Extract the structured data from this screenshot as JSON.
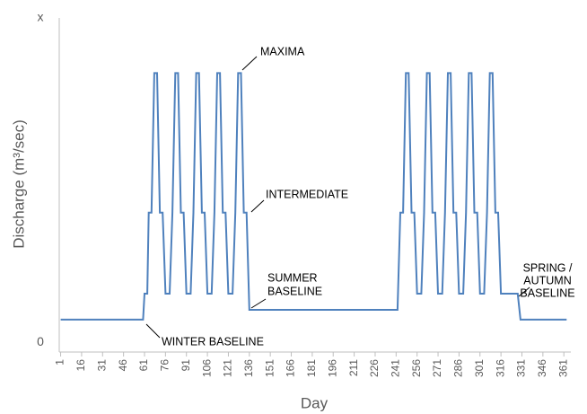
{
  "chart_data": {
    "type": "line",
    "x_label": "Day",
    "y_label": "Discharge (m³/sec)",
    "color": "#4f81bd",
    "xlim": [
      0,
      366
    ],
    "xticks": [
      1,
      16,
      31,
      46,
      61,
      76,
      91,
      106,
      121,
      136,
      151,
      166,
      181,
      196,
      211,
      226,
      241,
      256,
      271,
      286,
      301,
      316,
      331,
      346,
      361
    ],
    "ylim": [
      -0.3,
      10
    ],
    "yticks": [
      0,
      {
        "value": 10,
        "label": "x"
      }
    ],
    "x": [
      1,
      60,
      61,
      63,
      64,
      66,
      68,
      70,
      72,
      74,
      76,
      79,
      81,
      83,
      85,
      87,
      89,
      91,
      94,
      96,
      98,
      100,
      102,
      104,
      106,
      109,
      111,
      113,
      115,
      117,
      119,
      121,
      124,
      126,
      128,
      130,
      132,
      134,
      136,
      242,
      244,
      246,
      248,
      250,
      252,
      254,
      256,
      259,
      261,
      263,
      265,
      267,
      269,
      271,
      274,
      276,
      278,
      280,
      282,
      284,
      286,
      289,
      291,
      293,
      295,
      297,
      299,
      301,
      304,
      306,
      308,
      310,
      312,
      314,
      316,
      328,
      330,
      363
    ],
    "values": [
      0.7,
      0.7,
      1.5,
      1.5,
      4,
      4,
      8.3,
      8.3,
      4,
      4,
      1.5,
      1.5,
      4,
      8.3,
      8.3,
      4,
      4,
      1.5,
      1.5,
      4,
      8.3,
      8.3,
      4,
      4,
      1.5,
      1.5,
      4,
      8.3,
      8.3,
      4,
      4,
      1.5,
      1.5,
      4,
      8.3,
      8.3,
      4,
      4,
      1.0,
      1.0,
      4,
      4,
      8.3,
      8.3,
      4,
      4,
      1.5,
      1.5,
      4,
      8.3,
      8.3,
      4,
      4,
      1.5,
      1.5,
      4,
      8.3,
      8.3,
      4,
      4,
      1.5,
      1.5,
      4,
      8.3,
      8.3,
      4,
      4,
      1.5,
      1.5,
      4,
      8.3,
      8.3,
      4,
      4,
      1.5,
      1.5,
      0.7,
      0.7
    ],
    "annotations": [
      {
        "lines": [
          "MAXIMA"
        ]
      },
      {
        "lines": [
          "INTERMEDIATE"
        ]
      },
      {
        "lines": [
          "SUMMER",
          "BASELINE"
        ]
      },
      {
        "lines": [
          "WINTER BASELINE"
        ]
      },
      {
        "lines": [
          "SPRING /",
          "AUTUMN",
          "BASELINE"
        ]
      }
    ]
  }
}
